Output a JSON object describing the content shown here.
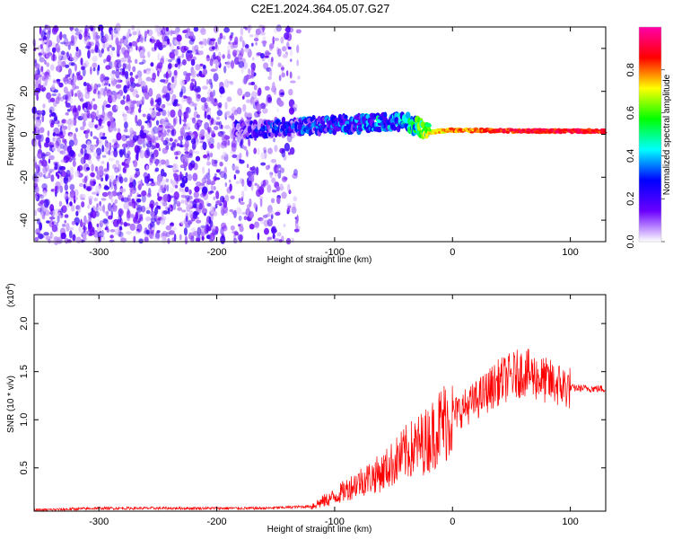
{
  "title": "C2E1.2024.364.05.07.G27",
  "chart_data": [
    {
      "type": "heatmap",
      "xlabel": "Height of straight line (km)",
      "ylabel": "Frequency (Hz)",
      "xlim": [
        -355,
        130
      ],
      "ylim": [
        -50,
        50
      ],
      "x_ticks": [
        -300,
        -200,
        -100,
        0,
        100
      ],
      "y_ticks": [
        -40,
        -20,
        0,
        20,
        40
      ],
      "colorbar": {
        "label": "Normalized spectral amplitude",
        "range": [
          0,
          1
        ],
        "ticks": [
          "0.0",
          "0.2",
          "0.4",
          "0.6",
          "0.8"
        ],
        "colors": [
          "#ffffff",
          "#6a00ff",
          "#0000ff",
          "#00ffff",
          "#00ff00",
          "#ffff00",
          "#ff0000",
          "#ff00aa"
        ]
      },
      "trend": [
        {
          "x": -180,
          "freq": 2,
          "amp": 0.3
        },
        {
          "x": -120,
          "freq": 4,
          "amp": 0.4
        },
        {
          "x": -80,
          "freq": 5,
          "amp": 0.45
        },
        {
          "x": -40,
          "freq": 6,
          "amp": 0.55
        },
        {
          "x": -20,
          "freq": 1,
          "amp": 0.75
        },
        {
          "x": 0,
          "freq": 2,
          "amp": 0.85
        },
        {
          "x": 60,
          "freq": 1.5,
          "amp": 0.95
        },
        {
          "x": 130,
          "freq": 1.5,
          "amp": 0.95
        }
      ]
    },
    {
      "type": "line",
      "xlabel": "Height of straight line (km)",
      "ylabel": "SNR (10 * v/v)",
      "y_multiplier": "(x10",
      "y_multiplier_exp": "4",
      "y_multiplier_close": ")",
      "xlim": [
        -355,
        130
      ],
      "ylim": [
        0.05,
        2.3
      ],
      "x_ticks": [
        -300,
        -200,
        -100,
        0,
        100
      ],
      "y_ticks": [
        {
          "value": 0.5,
          "label": "0.5"
        },
        {
          "value": 1.0,
          "label": "1.0"
        },
        {
          "value": 1.5,
          "label": "1.5"
        },
        {
          "value": 2.0,
          "label": "2.0"
        }
      ],
      "series": [
        {
          "color": "#ff0000",
          "x": [
            -355,
            -300,
            -250,
            -200,
            -160,
            -120,
            -100,
            -80,
            -60,
            -40,
            -20,
            -10,
            0,
            20,
            40,
            60,
            80,
            100,
            130
          ],
          "values": [
            0.06,
            0.08,
            0.08,
            0.08,
            0.08,
            0.1,
            0.2,
            0.35,
            0.45,
            0.65,
            0.8,
            0.95,
            1.05,
            1.2,
            1.4,
            1.5,
            1.4,
            1.33,
            1.32
          ]
        }
      ]
    }
  ]
}
